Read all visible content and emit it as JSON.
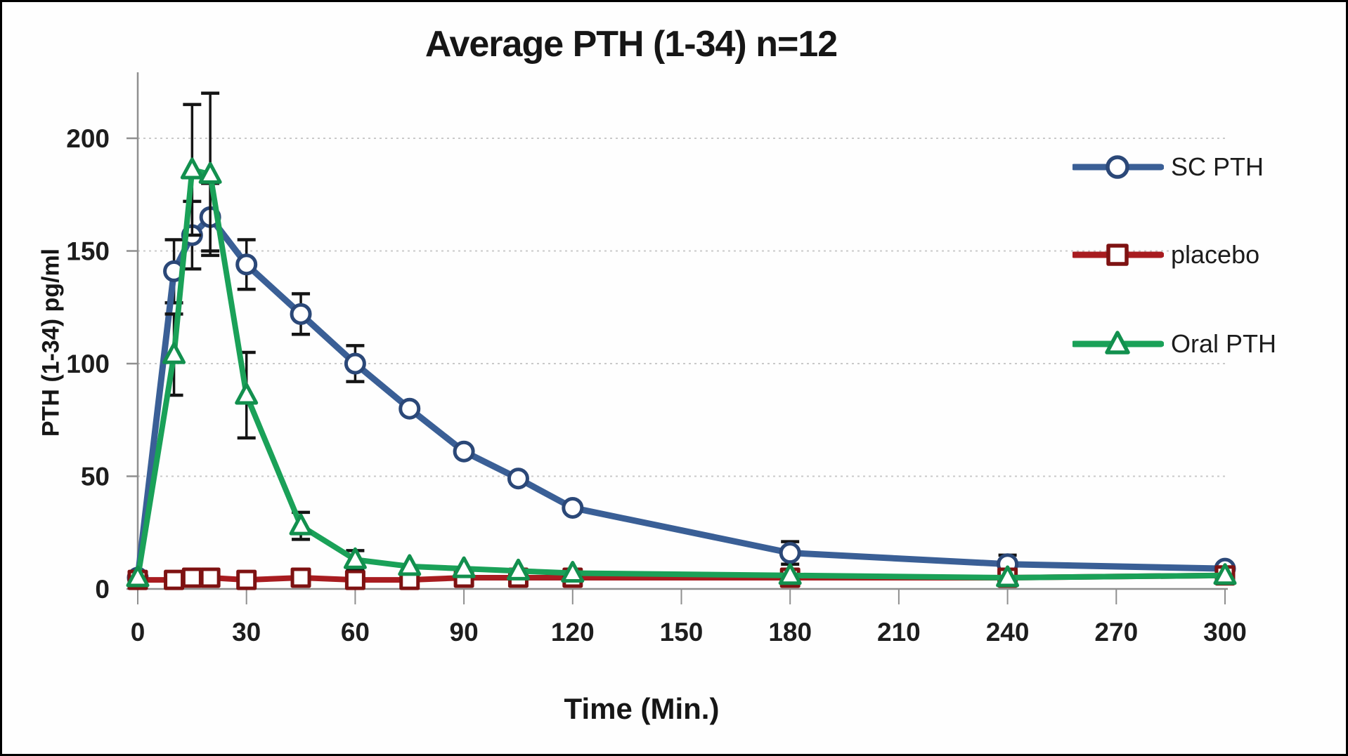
{
  "chart_data": {
    "type": "line",
    "title": "Average PTH (1-34) n=12",
    "xlabel": "Time (Min.)",
    "ylabel": "PTH (1-34) pg/ml",
    "xlim": [
      0,
      300
    ],
    "ylim": [
      0,
      200
    ],
    "x_ticks": [
      0,
      30,
      60,
      90,
      120,
      150,
      180,
      210,
      240,
      270,
      300
    ],
    "y_ticks": [
      0,
      50,
      100,
      150,
      200
    ],
    "grid": {
      "horizontal": true,
      "style": "dotted",
      "color": "#c9c9c9"
    },
    "axis_color": "#8f8f8f",
    "tick_label_color": "#1d1d1d",
    "error_bar_color": "#141414",
    "legend_position": "upper-right",
    "x": [
      0,
      10,
      15,
      20,
      30,
      45,
      60,
      75,
      90,
      105,
      120,
      180,
      240,
      300
    ],
    "series": [
      {
        "name": "SC PTH",
        "marker": "circle",
        "line_color": "#3A5F96",
        "marker_color": "#2B4878",
        "values": [
          5,
          141,
          157,
          165,
          144,
          122,
          100,
          80,
          61,
          49,
          36,
          16,
          11,
          9
        ],
        "errors": [
          null,
          14,
          15,
          15,
          11,
          9,
          8,
          null,
          null,
          null,
          null,
          5,
          4,
          null
        ]
      },
      {
        "name": "placebo",
        "marker": "square",
        "line_color": "#A81C20",
        "marker_color": "#7E1212",
        "values": [
          4,
          4,
          5,
          5,
          4,
          5,
          4,
          4,
          5,
          5,
          5,
          5,
          5,
          6
        ],
        "errors": [
          null,
          null,
          null,
          null,
          null,
          null,
          null,
          null,
          null,
          null,
          null,
          null,
          null,
          null
        ]
      },
      {
        "name": "Oral PTH",
        "marker": "triangle",
        "line_color": "#1AA158",
        "marker_color": "#12904E",
        "values": [
          5,
          104,
          186,
          184,
          86,
          28,
          13,
          10,
          9,
          8,
          7,
          6,
          5,
          6
        ],
        "errors": [
          null,
          18,
          29,
          36,
          19,
          6,
          4,
          null,
          null,
          null,
          null,
          null,
          null,
          null
        ]
      }
    ]
  }
}
